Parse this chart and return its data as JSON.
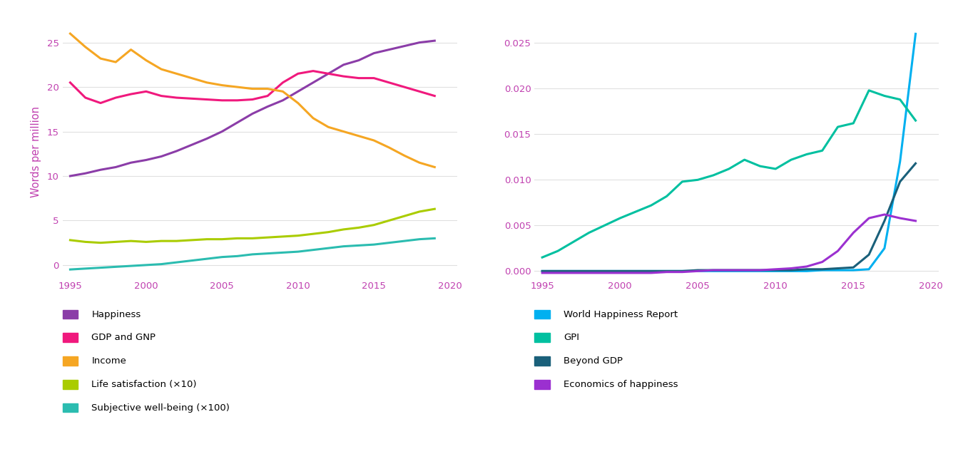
{
  "left_chart": {
    "ylabel": "Words per million",
    "ylim": [
      -1.5,
      27
    ],
    "yticks": [
      0,
      5,
      10,
      15,
      20,
      25
    ],
    "xlim": [
      1994.5,
      2020.5
    ],
    "xticks": [
      1995,
      2000,
      2005,
      2010,
      2015,
      2020
    ],
    "series": {
      "Happiness": {
        "color": "#8B3DA8",
        "linewidth": 2.2,
        "x": [
          1995,
          1996,
          1997,
          1998,
          1999,
          2000,
          2001,
          2002,
          2003,
          2004,
          2005,
          2006,
          2007,
          2008,
          2009,
          2010,
          2011,
          2012,
          2013,
          2014,
          2015,
          2016,
          2017,
          2018,
          2019
        ],
        "y": [
          10.0,
          10.3,
          10.7,
          11.0,
          11.5,
          11.8,
          12.2,
          12.8,
          13.5,
          14.2,
          15.0,
          16.0,
          17.0,
          17.8,
          18.5,
          19.5,
          20.5,
          21.5,
          22.5,
          23.0,
          23.8,
          24.2,
          24.6,
          25.0,
          25.2
        ]
      },
      "GDP and GNP": {
        "color": "#F0197D",
        "linewidth": 2.2,
        "x": [
          1995,
          1996,
          1997,
          1998,
          1999,
          2000,
          2001,
          2002,
          2003,
          2004,
          2005,
          2006,
          2007,
          2008,
          2009,
          2010,
          2011,
          2012,
          2013,
          2014,
          2015,
          2016,
          2017,
          2018,
          2019
        ],
        "y": [
          20.5,
          18.8,
          18.2,
          18.8,
          19.2,
          19.5,
          19.0,
          18.8,
          18.7,
          18.6,
          18.5,
          18.5,
          18.6,
          19.0,
          20.5,
          21.5,
          21.8,
          21.5,
          21.2,
          21.0,
          21.0,
          20.5,
          20.0,
          19.5,
          19.0
        ]
      },
      "Income": {
        "color": "#F5A623",
        "linewidth": 2.2,
        "x": [
          1995,
          1996,
          1997,
          1998,
          1999,
          2000,
          2001,
          2002,
          2003,
          2004,
          2005,
          2006,
          2007,
          2008,
          2009,
          2010,
          2011,
          2012,
          2013,
          2014,
          2015,
          2016,
          2017,
          2018,
          2019
        ],
        "y": [
          26.0,
          24.5,
          23.2,
          22.8,
          24.2,
          23.0,
          22.0,
          21.5,
          21.0,
          20.5,
          20.2,
          20.0,
          19.8,
          19.8,
          19.5,
          18.2,
          16.5,
          15.5,
          15.0,
          14.5,
          14.0,
          13.2,
          12.3,
          11.5,
          11.0
        ]
      },
      "Life satisfaction (x10)": {
        "color": "#AACC00",
        "linewidth": 2.2,
        "x": [
          1995,
          1996,
          1997,
          1998,
          1999,
          2000,
          2001,
          2002,
          2003,
          2004,
          2005,
          2006,
          2007,
          2008,
          2009,
          2010,
          2011,
          2012,
          2013,
          2014,
          2015,
          2016,
          2017,
          2018,
          2019
        ],
        "y": [
          2.8,
          2.6,
          2.5,
          2.6,
          2.7,
          2.6,
          2.7,
          2.7,
          2.8,
          2.9,
          2.9,
          3.0,
          3.0,
          3.1,
          3.2,
          3.3,
          3.5,
          3.7,
          4.0,
          4.2,
          4.5,
          5.0,
          5.5,
          6.0,
          6.3
        ]
      },
      "Subjective well-being (x100)": {
        "color": "#2BBCB0",
        "linewidth": 2.2,
        "x": [
          1995,
          1996,
          1997,
          1998,
          1999,
          2000,
          2001,
          2002,
          2003,
          2004,
          2005,
          2006,
          2007,
          2008,
          2009,
          2010,
          2011,
          2012,
          2013,
          2014,
          2015,
          2016,
          2017,
          2018,
          2019
        ],
        "y": [
          -0.5,
          -0.4,
          -0.3,
          -0.2,
          -0.1,
          0.0,
          0.1,
          0.3,
          0.5,
          0.7,
          0.9,
          1.0,
          1.2,
          1.3,
          1.4,
          1.5,
          1.7,
          1.9,
          2.1,
          2.2,
          2.3,
          2.5,
          2.7,
          2.9,
          3.0
        ]
      }
    }
  },
  "right_chart": {
    "ylim": [
      -0.0008,
      0.027
    ],
    "yticks": [
      0.0,
      0.005,
      0.01,
      0.015,
      0.02,
      0.025
    ],
    "xlim": [
      1994.5,
      2020.5
    ],
    "xticks": [
      1995,
      2000,
      2005,
      2010,
      2015,
      2020
    ],
    "series": {
      "World Happiness Report": {
        "color": "#00B0F0",
        "linewidth": 2.2,
        "x": [
          1995,
          1996,
          1997,
          1998,
          1999,
          2000,
          2001,
          2002,
          2003,
          2004,
          2005,
          2006,
          2007,
          2008,
          2009,
          2010,
          2011,
          2012,
          2013,
          2014,
          2015,
          2016,
          2017,
          2018,
          2019
        ],
        "y": [
          0.0,
          0.0,
          0.0,
          0.0,
          0.0,
          0.0,
          0.0,
          0.0,
          0.0,
          0.0,
          0.0,
          0.0,
          0.0,
          0.0,
          0.0,
          0.0,
          0.0,
          0.0,
          0.0001,
          0.0001,
          0.0001,
          0.0002,
          0.0025,
          0.012,
          0.026
        ]
      },
      "GPI": {
        "color": "#00C0A0",
        "linewidth": 2.2,
        "x": [
          1995,
          1996,
          1997,
          1998,
          1999,
          2000,
          2001,
          2002,
          2003,
          2004,
          2005,
          2006,
          2007,
          2008,
          2009,
          2010,
          2011,
          2012,
          2013,
          2014,
          2015,
          2016,
          2017,
          2018,
          2019
        ],
        "y": [
          0.0015,
          0.0022,
          0.0032,
          0.0042,
          0.005,
          0.0058,
          0.0065,
          0.0072,
          0.0082,
          0.0098,
          0.01,
          0.0105,
          0.0112,
          0.0122,
          0.0115,
          0.0112,
          0.0122,
          0.0128,
          0.0132,
          0.0158,
          0.0162,
          0.0198,
          0.0192,
          0.0188,
          0.0165
        ]
      },
      "Beyond GDP": {
        "color": "#1A607A",
        "linewidth": 2.2,
        "x": [
          1995,
          1996,
          1997,
          1998,
          1999,
          2000,
          2001,
          2002,
          2003,
          2004,
          2005,
          2006,
          2007,
          2008,
          2009,
          2010,
          2011,
          2012,
          2013,
          2014,
          2015,
          2016,
          2017,
          2018,
          2019
        ],
        "y": [
          0.0,
          0.0,
          0.0,
          0.0,
          0.0,
          0.0,
          0.0,
          0.0,
          0.0,
          0.0,
          0.0001,
          0.0001,
          0.0001,
          0.0001,
          0.0001,
          0.0001,
          0.0001,
          0.0002,
          0.0002,
          0.0003,
          0.0004,
          0.0018,
          0.0055,
          0.0098,
          0.0118
        ]
      },
      "Economics of happiness": {
        "color": "#9B30D0",
        "linewidth": 2.2,
        "x": [
          1995,
          1996,
          1997,
          1998,
          1999,
          2000,
          2001,
          2002,
          2003,
          2004,
          2005,
          2006,
          2007,
          2008,
          2009,
          2010,
          2011,
          2012,
          2013,
          2014,
          2015,
          2016,
          2017,
          2018,
          2019
        ],
        "y": [
          -0.0002,
          -0.0002,
          -0.0002,
          -0.0002,
          -0.0002,
          -0.0002,
          -0.0002,
          -0.0002,
          -0.0001,
          -0.0001,
          0.0,
          0.0001,
          0.0001,
          0.0001,
          0.0001,
          0.0002,
          0.0003,
          0.0005,
          0.001,
          0.0022,
          0.0042,
          0.0058,
          0.0062,
          0.0058,
          0.0055
        ]
      }
    }
  },
  "legend_left": [
    {
      "label": "Happiness",
      "color": "#8B3DA8"
    },
    {
      "label": "GDP and GNP",
      "color": "#F0197D"
    },
    {
      "label": "Income",
      "color": "#F5A623"
    },
    {
      "label": "Life satisfaction (×10)",
      "color": "#AACC00"
    },
    {
      "label": "Subjective well-being (×100)",
      "color": "#2BBCB0"
    }
  ],
  "legend_right": [
    {
      "label": "World Happiness Report",
      "color": "#00B0F0"
    },
    {
      "label": "GPI",
      "color": "#00C0A0"
    },
    {
      "label": "Beyond GDP",
      "color": "#1A607A"
    },
    {
      "label": "Economics of happiness",
      "color": "#9B30D0"
    }
  ],
  "tick_color": "#C040B0",
  "background_color": "#FFFFFF",
  "grid_color": "#E0E0E0"
}
